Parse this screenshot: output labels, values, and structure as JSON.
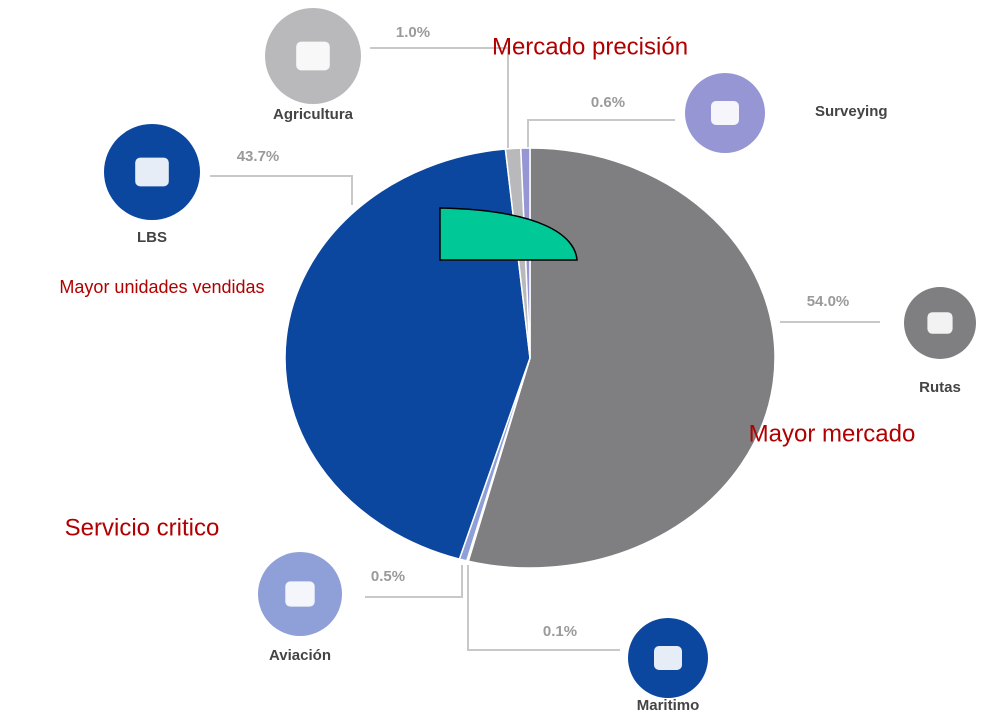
{
  "chart_data": {
    "type": "pie",
    "categories": [
      "Rutas",
      "Maritimo",
      "Aviación",
      "LBS",
      "Agricultura",
      "Surveying"
    ],
    "values": [
      54.0,
      0.1,
      0.5,
      43.7,
      1.0,
      0.6
    ],
    "value_labels": [
      "54.0%",
      "0.1%",
      "0.5%",
      "43.7%",
      "1.0%",
      "0.6%"
    ],
    "colors": [
      "#7f7f81",
      "#1a4a9c",
      "#8f9fd8",
      "#0b469f",
      "#b9b9bb",
      "#9696d4"
    ],
    "annotations": [
      "Mercado precisión",
      "Mayor unidades vendidas",
      "Mayor mercado",
      "Servicio critico"
    ]
  }
}
